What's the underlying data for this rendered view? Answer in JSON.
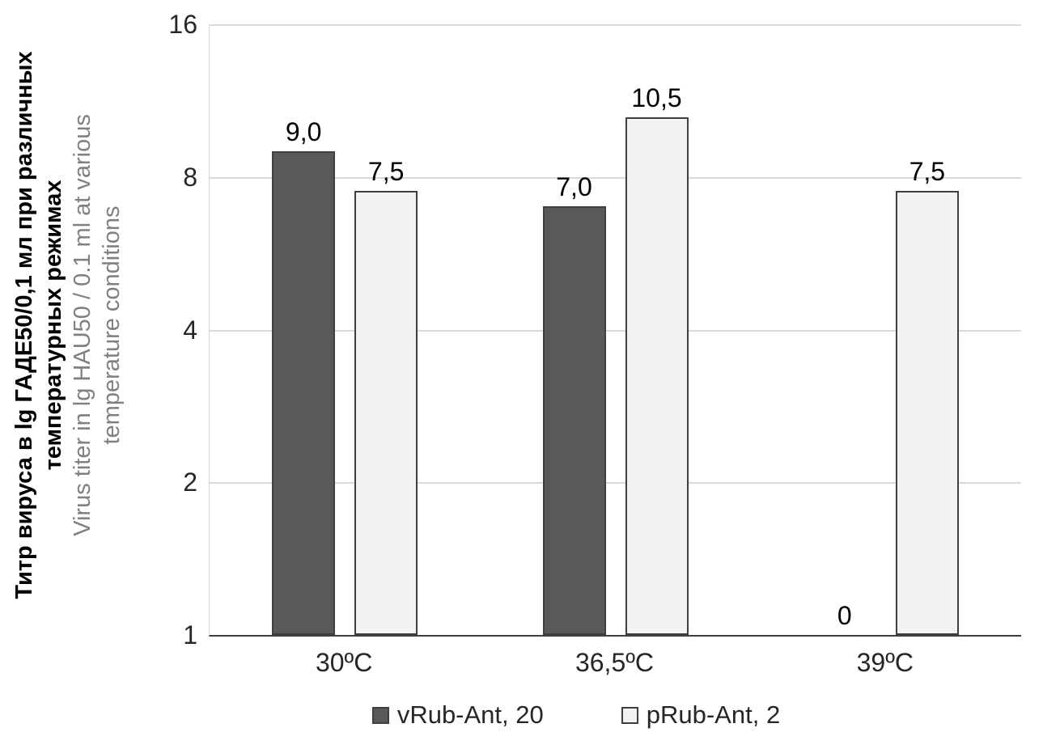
{
  "chart_data": {
    "type": "bar",
    "title": "",
    "categories": [
      "30ºC",
      "36,5ºC",
      "39ºC"
    ],
    "series": [
      {
        "name": "vRub-Ant, 20",
        "fill": "#595959",
        "border": "#3f3f3f",
        "values": [
          9.0,
          7.0,
          0
        ],
        "value_labels": [
          "9,0",
          "7,0",
          "0"
        ]
      },
      {
        "name": "pRub-Ant, 2",
        "fill": "#f2f2f2",
        "border": "#3f3f3f",
        "values": [
          7.5,
          10.5,
          7.5
        ],
        "value_labels": [
          "7,5",
          "10,5",
          "7,5"
        ]
      }
    ],
    "y_axis": {
      "scale": "log2",
      "min": 1,
      "max": 16,
      "ticks": [
        16,
        8,
        4,
        2,
        1
      ]
    },
    "ylabel_ru_lines": [
      "Титр вируса в lg ГАДЕ50/0,1 мл при различных",
      "температурных режимах"
    ],
    "ylabel_en_lines": [
      "Virus titer in lg HAU50 / 0.1 ml at various",
      "temperature conditions"
    ],
    "xlabel": "",
    "legend_position": "bottom",
    "grid": true,
    "gridline_color": "#d9d9d9",
    "axis_line_color": "#404040",
    "data_label_color": "#000000"
  }
}
